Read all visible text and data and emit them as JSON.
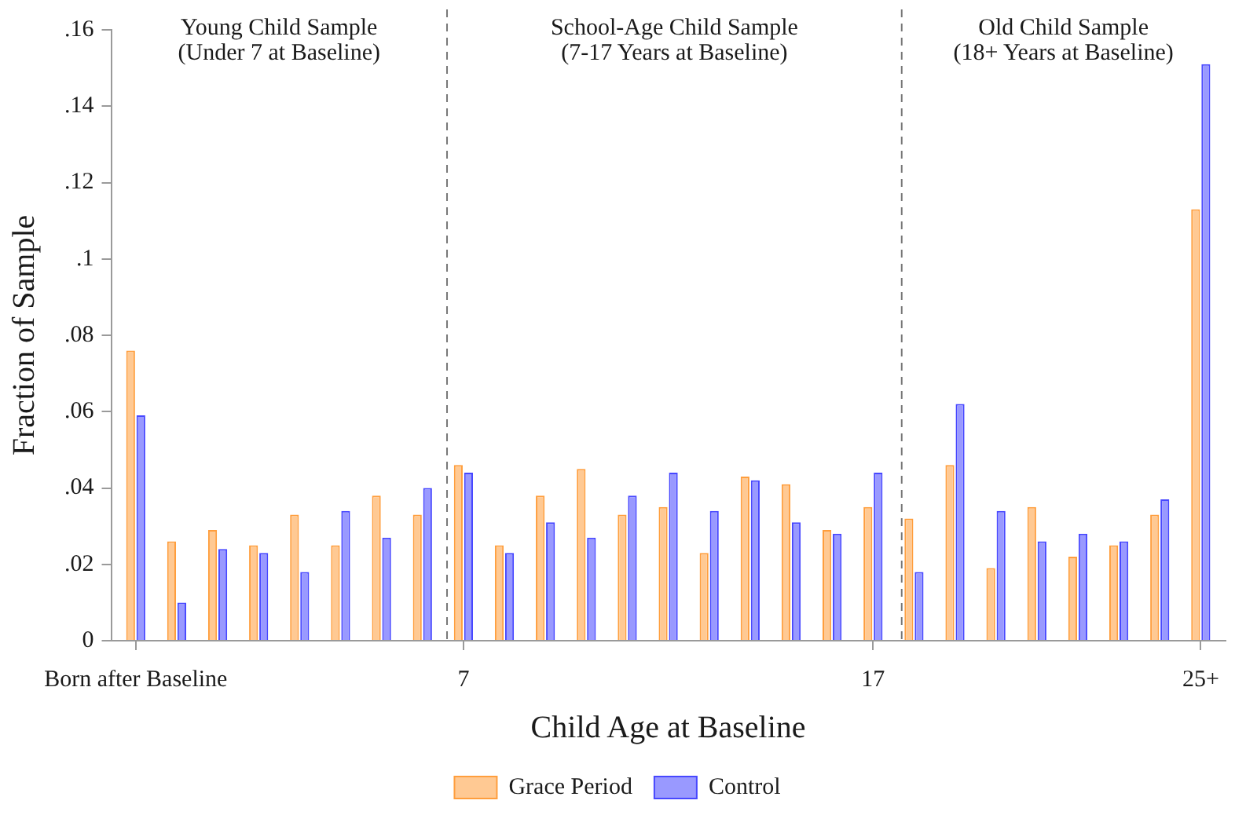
{
  "chart_data": {
    "type": "bar",
    "x": [
      -1,
      0,
      1,
      2,
      3,
      4,
      5,
      6,
      7,
      8,
      9,
      10,
      11,
      12,
      13,
      14,
      15,
      16,
      17,
      18,
      19,
      20,
      21,
      22,
      23,
      24,
      25
    ],
    "series": [
      {
        "name": "Grace Period",
        "color": "#ffc993",
        "values": [
          0.076,
          0.026,
          0.029,
          0.025,
          0.033,
          0.025,
          0.038,
          0.033,
          0.046,
          0.025,
          0.038,
          0.045,
          0.033,
          0.035,
          0.023,
          0.043,
          0.041,
          0.029,
          0.035,
          0.032,
          0.046,
          0.019,
          0.035,
          0.022,
          0.025,
          0.033,
          0.113
        ]
      },
      {
        "name": "Control",
        "color": "#9999ff",
        "values": [
          0.059,
          0.01,
          0.024,
          0.023,
          0.018,
          0.034,
          0.027,
          0.04,
          0.044,
          0.023,
          0.031,
          0.027,
          0.038,
          0.044,
          0.034,
          0.042,
          0.031,
          0.028,
          0.044,
          0.018,
          0.062,
          0.034,
          0.026,
          0.028,
          0.026,
          0.037,
          0.151
        ]
      }
    ],
    "xlabel": "Child Age at Baseline",
    "ylabel": "Fraction of Sample",
    "xlim": [
      -1.6,
      25.6
    ],
    "xticks": [
      {
        "value": -1,
        "label": "Born after Baseline"
      },
      7,
      17,
      {
        "value": 25,
        "label": "25+"
      }
    ],
    "ylim": [
      0,
      0.16
    ],
    "yticks": [
      0,
      {
        "value": 0.02,
        "label": ".02"
      },
      {
        "value": 0.04,
        "label": ".04"
      },
      {
        "value": 0.06,
        "label": ".06"
      },
      {
        "value": 0.08,
        "label": ".08"
      },
      {
        "value": 0.1,
        "label": ".1"
      },
      {
        "value": 0.12,
        "label": ".12"
      },
      {
        "value": 0.14,
        "label": ".14"
      },
      {
        "value": 0.16,
        "label": ".16"
      }
    ],
    "ref_lines": [
      {
        "axis": "x",
        "value": 6.6,
        "color": "#777777",
        "line_style": "dashed"
      },
      {
        "axis": "x",
        "value": 17.7,
        "color": "#777777",
        "line_style": "dashed"
      }
    ],
    "annotations": [
      "Young Child Sample\n(Under 7 at Baseline)",
      "School-Age Child Sample\n(7-17 Years at Baseline)",
      "Old Child Sample\n(18+ Years at Baseline)"
    ],
    "legend": "bottom"
  }
}
